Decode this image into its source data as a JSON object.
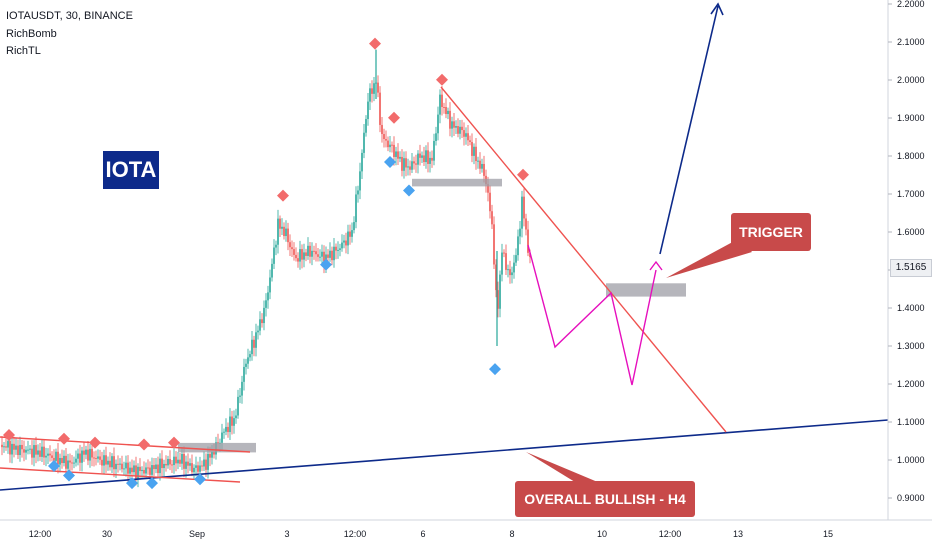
{
  "header": {
    "title": "IOTAUSDT, 30, BINANCE",
    "indicator_1": "RichBomb",
    "indicator_2": "RichTL"
  },
  "labels": {
    "asset": "IOTA",
    "trigger": "TRIGGER",
    "overall": "OVERALL BULLISH - H4",
    "last_price": "1.5165"
  },
  "colors": {
    "bull_candle": "#26a69a",
    "bear_candle": "#ef5350",
    "resistance_line": "#ef5350",
    "trend_line": "#0d2a8a",
    "projection": "#e60fbd",
    "zone": "#9e9ea6",
    "label_red": "#c84a4a",
    "label_blue": "#0d2a8a"
  },
  "chart_data": {
    "type": "candlestick",
    "symbol": "IOTAUSDT",
    "timeframe": "30",
    "exchange": "BINANCE",
    "y_ticks": [
      "0.9000",
      "1.0000",
      "1.1000",
      "1.2000",
      "1.3000",
      "1.4000",
      "1.5000",
      "1.6000",
      "1.7000",
      "1.8000",
      "1.9000",
      "2.0000",
      "2.1000",
      "2.2000"
    ],
    "ylim": [
      0.875,
      2.215
    ],
    "x_ticks": [
      "12:00",
      "30",
      "Sep",
      "3",
      "12:00",
      "6",
      "8",
      "10",
      "12:00",
      "13",
      "15"
    ],
    "last_price": 1.5165,
    "swing_points": [
      {
        "kind": "high",
        "price": 1.05
      },
      {
        "kind": "low",
        "price": 1.0
      },
      {
        "kind": "high",
        "price": 1.04
      },
      {
        "kind": "low",
        "price": 0.975
      },
      {
        "kind": "high",
        "price": 1.03
      },
      {
        "kind": "high",
        "price": 1.025
      },
      {
        "kind": "low",
        "price": 0.955
      },
      {
        "kind": "low",
        "price": 0.955
      },
      {
        "kind": "high",
        "price": 1.03
      },
      {
        "kind": "low",
        "price": 0.965
      },
      {
        "kind": "high",
        "price": 1.68
      },
      {
        "kind": "low",
        "price": 1.53
      },
      {
        "kind": "high",
        "price": 2.08
      },
      {
        "kind": "high",
        "price": 1.885
      },
      {
        "kind": "low",
        "price": 1.8
      },
      {
        "kind": "low",
        "price": 1.725
      },
      {
        "kind": "high",
        "price": 1.985
      },
      {
        "kind": "high",
        "price": 1.735
      },
      {
        "kind": "low",
        "price": 1.255
      }
    ],
    "zones": [
      {
        "name": "support-zone-left",
        "low": 1.02,
        "high": 1.045
      },
      {
        "name": "resistance-zone-mid",
        "low": 1.72,
        "high": 1.74
      },
      {
        "name": "trigger-zone",
        "low": 1.43,
        "high": 1.465
      }
    ],
    "projection_path": [
      1.58,
      1.3,
      1.45,
      1.2,
      1.52
    ]
  }
}
